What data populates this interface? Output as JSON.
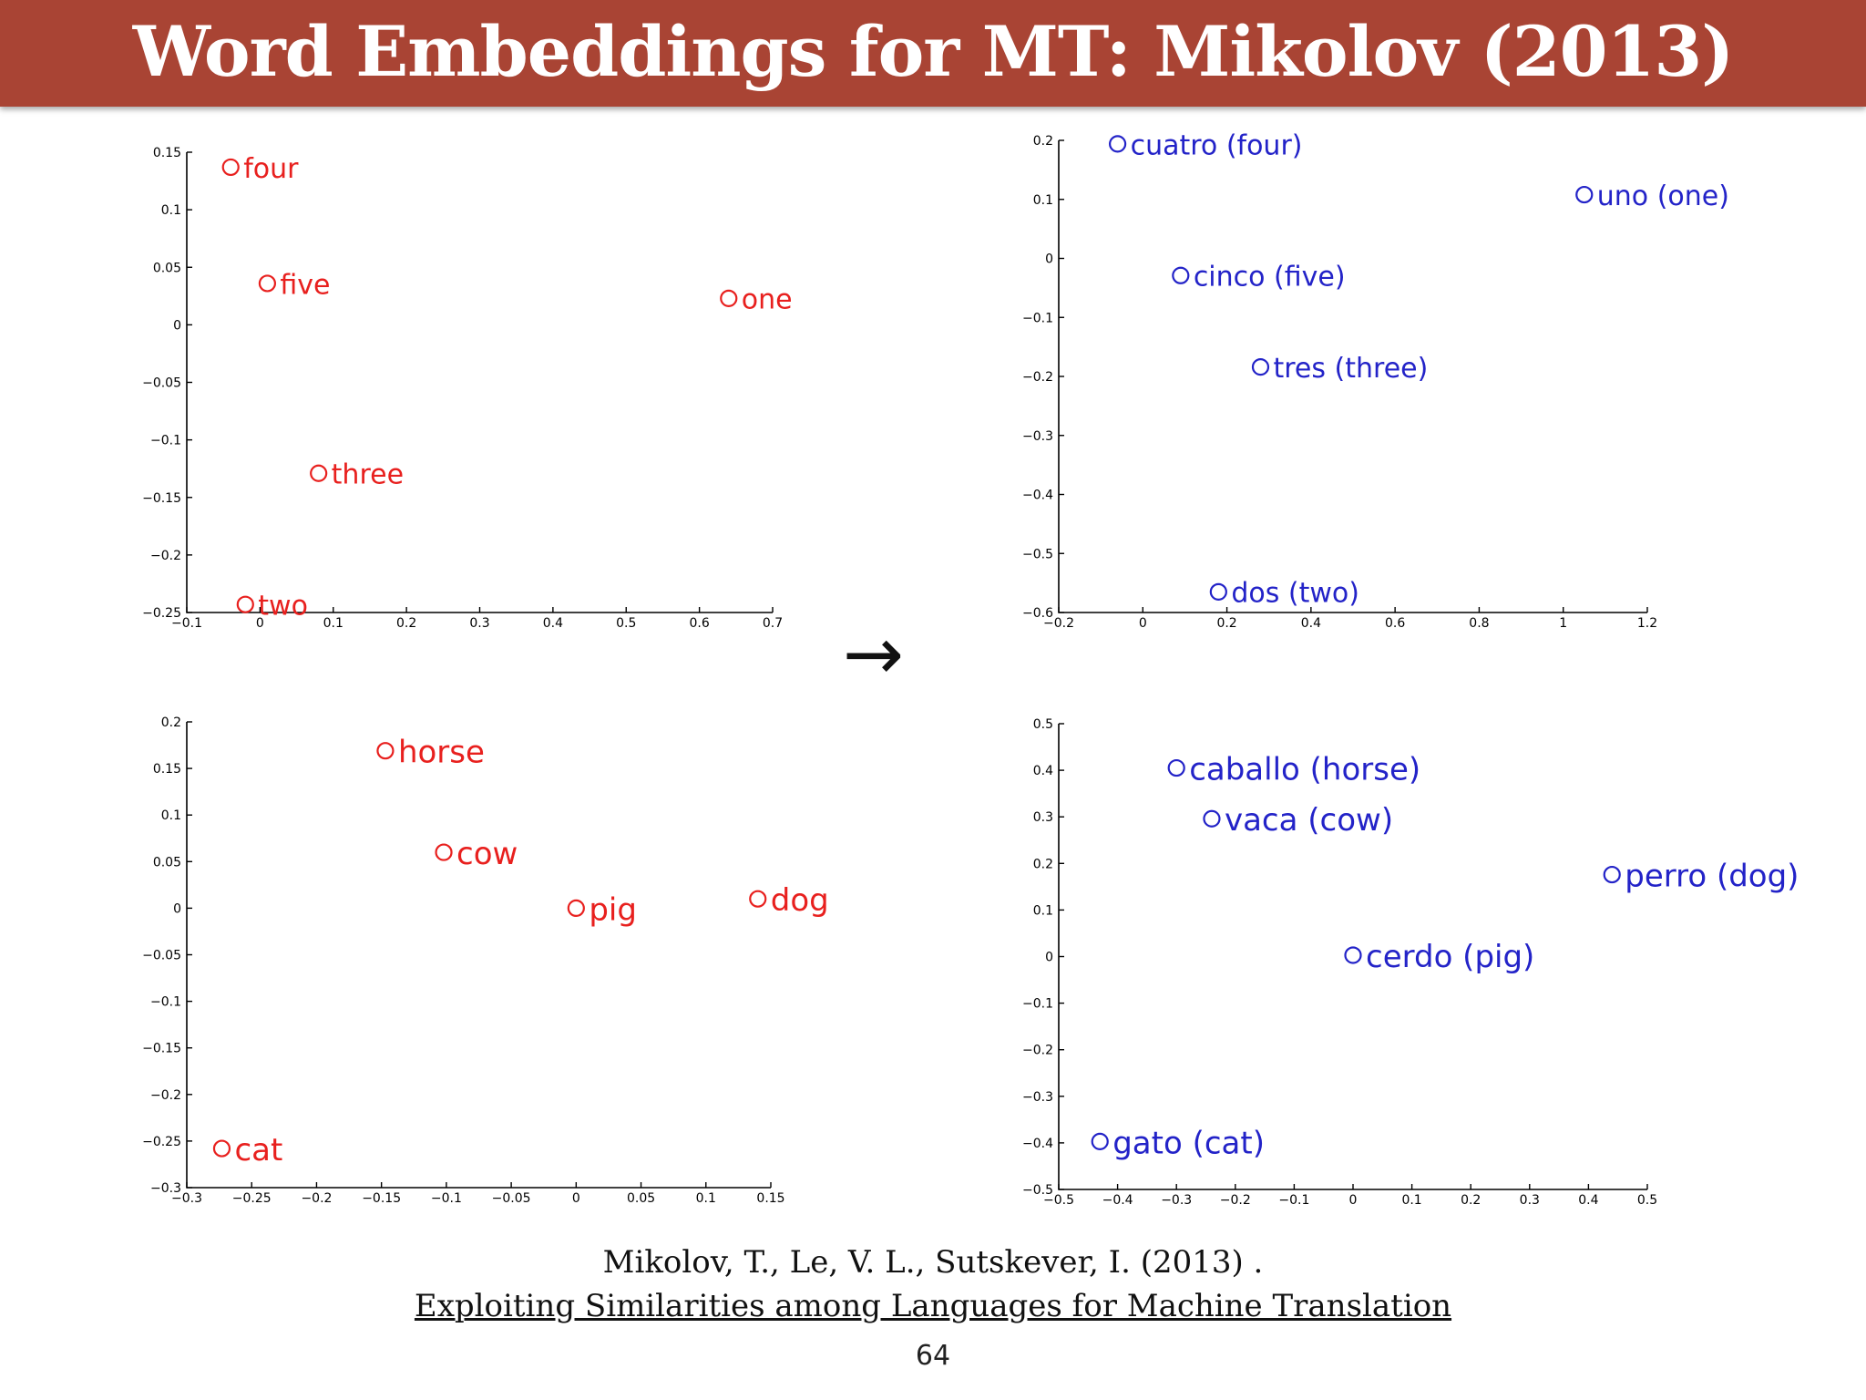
{
  "slide": {
    "title": "Word Embeddings for MT: Mikolov (2013)",
    "arrow": "→",
    "citation_line1": "Mikolov, T., Le, V. L., Sutskever, I.  (2013) .",
    "citation_line2": "Exploiting Similarities among Languages for Machine Translation",
    "page_number": "64"
  },
  "chart_data": [
    {
      "type": "scatter",
      "title": "",
      "xlabel": "",
      "ylabel": "",
      "color": "#e8201e",
      "marker": "open-circle",
      "xlim": [
        -0.1,
        0.7
      ],
      "ylim": [
        -0.25,
        0.15
      ],
      "xticks": [
        -0.1,
        0,
        0.1,
        0.2,
        0.3,
        0.4,
        0.5,
        0.6,
        0.7
      ],
      "xtick_labels": [
        "−0.1",
        "0",
        "0.1",
        "0.2",
        "0.3",
        "0.4",
        "0.5",
        "0.6",
        "0.7"
      ],
      "yticks": [
        -0.25,
        -0.2,
        -0.15,
        -0.1,
        -0.05,
        0,
        0.05,
        0.1,
        0.15
      ],
      "ytick_labels": [
        "−0.25",
        "−0.2",
        "−0.15",
        "−0.1",
        "−0.05",
        "0",
        "0.05",
        "0.1",
        "0.15"
      ],
      "points": [
        {
          "label": "four",
          "x": -0.04,
          "y": 0.137
        },
        {
          "label": "five",
          "x": 0.01,
          "y": 0.036
        },
        {
          "label": "one",
          "x": 0.64,
          "y": 0.023
        },
        {
          "label": "three",
          "x": 0.08,
          "y": -0.129
        },
        {
          "label": "two",
          "x": -0.02,
          "y": -0.243
        }
      ]
    },
    {
      "type": "scatter",
      "title": "",
      "xlabel": "",
      "ylabel": "",
      "color": "#2323c8",
      "marker": "open-circle",
      "xlim": [
        -0.2,
        1.2
      ],
      "ylim": [
        -0.6,
        0.2
      ],
      "xticks": [
        -0.2,
        0,
        0.2,
        0.4,
        0.6,
        0.8,
        1,
        1.2
      ],
      "xtick_labels": [
        "−0.2",
        "0",
        "0.2",
        "0.4",
        "0.6",
        "0.8",
        "1",
        "1.2"
      ],
      "yticks": [
        -0.6,
        -0.5,
        -0.4,
        -0.3,
        -0.2,
        -0.1,
        0,
        0.1,
        0.2
      ],
      "ytick_labels": [
        "−0.6",
        "−0.5",
        "−0.4",
        "−0.3",
        "−0.2",
        "−0.1",
        "0",
        "0.1",
        "0.2"
      ],
      "points": [
        {
          "label": "cuatro (four)",
          "x": -0.06,
          "y": 0.194
        },
        {
          "label": "uno (one)",
          "x": 1.05,
          "y": 0.108
        },
        {
          "label": "cinco (five)",
          "x": 0.09,
          "y": -0.029
        },
        {
          "label": "tres (three)",
          "x": 0.28,
          "y": -0.184
        },
        {
          "label": "dos (two)",
          "x": 0.18,
          "y": -0.565
        }
      ]
    },
    {
      "type": "scatter",
      "title": "",
      "xlabel": "",
      "ylabel": "",
      "color": "#e8201e",
      "marker": "open-circle",
      "xlim": [
        -0.3,
        0.15
      ],
      "ylim": [
        -0.3,
        0.2
      ],
      "xticks": [
        -0.3,
        -0.25,
        -0.2,
        -0.15,
        -0.1,
        -0.05,
        0,
        0.05,
        0.1,
        0.15
      ],
      "xtick_labels": [
        "−0.3",
        "−0.25",
        "−0.2",
        "−0.15",
        "−0.1",
        "−0.05",
        "0",
        "0.05",
        "0.1",
        "0.15"
      ],
      "yticks": [
        -0.3,
        -0.25,
        -0.2,
        -0.15,
        -0.1,
        -0.05,
        0,
        0.05,
        0.1,
        0.15,
        0.2
      ],
      "ytick_labels": [
        "−0.3",
        "−0.25",
        "−0.2",
        "−0.15",
        "−0.1",
        "−0.05",
        "0",
        "0.05",
        "0.1",
        "0.15",
        "0.2"
      ],
      "points": [
        {
          "label": "horse",
          "x": -0.147,
          "y": 0.169
        },
        {
          "label": "cow",
          "x": -0.102,
          "y": 0.06
        },
        {
          "label": "pig",
          "x": 0.0,
          "y": 0.0
        },
        {
          "label": "dog",
          "x": 0.14,
          "y": 0.01
        },
        {
          "label": "cat",
          "x": -0.273,
          "y": -0.258
        }
      ]
    },
    {
      "type": "scatter",
      "title": "",
      "xlabel": "",
      "ylabel": "",
      "color": "#2323c8",
      "marker": "open-circle",
      "xlim": [
        -0.5,
        0.5
      ],
      "ylim": [
        -0.5,
        0.5
      ],
      "xticks": [
        -0.5,
        -0.4,
        -0.3,
        -0.2,
        -0.1,
        0,
        0.1,
        0.2,
        0.3,
        0.4,
        0.5
      ],
      "xtick_labels": [
        "−0.5",
        "−0.4",
        "−0.3",
        "−0.2",
        "−0.1",
        "0",
        "0.1",
        "0.2",
        "0.3",
        "0.4",
        "0.5"
      ],
      "yticks": [
        -0.5,
        -0.4,
        -0.3,
        -0.2,
        -0.1,
        0,
        0.1,
        0.2,
        0.3,
        0.4,
        0.5
      ],
      "ytick_labels": [
        "−0.5",
        "−0.4",
        "−0.3",
        "−0.2",
        "−0.1",
        "0",
        "0.1",
        "0.2",
        "0.3",
        "0.4",
        "0.5"
      ],
      "points": [
        {
          "label": "caballo (horse)",
          "x": -0.3,
          "y": 0.405
        },
        {
          "label": "vaca (cow)",
          "x": -0.24,
          "y": 0.296
        },
        {
          "label": "perro (dog)",
          "x": 0.44,
          "y": 0.176
        },
        {
          "label": "cerdo (pig)",
          "x": 0.0,
          "y": 0.003
        },
        {
          "label": "gato (cat)",
          "x": -0.43,
          "y": -0.397
        }
      ]
    }
  ]
}
